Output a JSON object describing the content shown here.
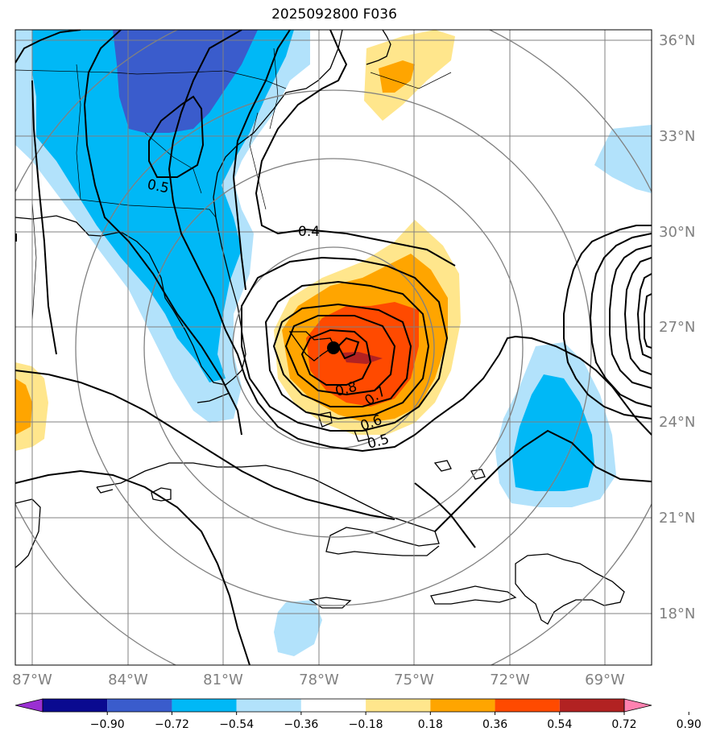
{
  "title": "2025092800 F036",
  "map": {
    "lat_ticks": [
      "36°N",
      "33°N",
      "30°N",
      "27°N",
      "24°N",
      "21°N",
      "18°N"
    ],
    "lon_ticks": [
      "87°W",
      "84°W",
      "81°W",
      "78°W",
      "75°W",
      "72°W",
      "69°W"
    ],
    "contour_labels": [
      "0.5",
      "0.4",
      "0.8",
      "0.7",
      "0.6",
      "0.5"
    ],
    "storm_center_marker": "storm-center-icon"
  },
  "colorbar": {
    "tick_labels": [
      "−0.90",
      "−0.72",
      "−0.54",
      "−0.36",
      "−0.18",
      "0.18",
      "0.36",
      "0.54",
      "0.72",
      "0.90"
    ],
    "colors": [
      "#9a30d2",
      "#0a0a90",
      "#3a5ccc",
      "#00b8f6",
      "#b2e2fb",
      "#ffffff",
      "#ffe68c",
      "#ffa500",
      "#ff4a00",
      "#b22222",
      "#ff82b0"
    ]
  },
  "legend_colors": {
    "neg_light": "#b2e2fb",
    "neg_mid": "#00b8f6",
    "neg_dark": "#3a5ccc",
    "pos_light": "#ffe68c",
    "pos_mid": "#ffa500",
    "pos_strong": "#ff4a00",
    "pos_max": "#b22222"
  }
}
